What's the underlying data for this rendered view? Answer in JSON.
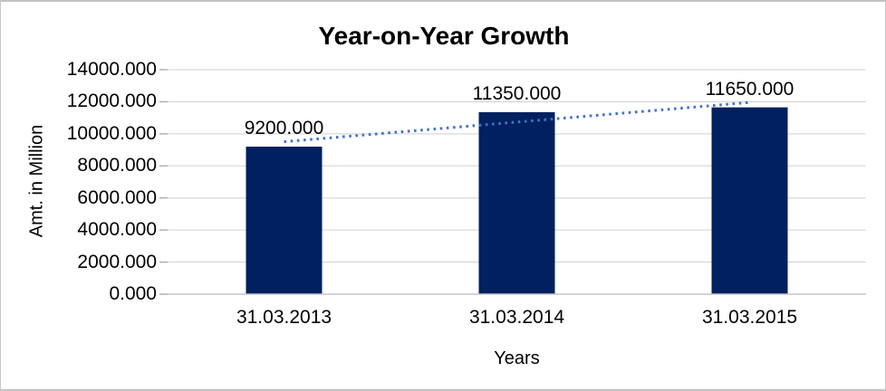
{
  "window": {
    "background": "#ffffff",
    "border_color": "#c9c9c9"
  },
  "chart_data": {
    "type": "bar",
    "title": "Year-on-Year Growth",
    "xlabel": "Years",
    "ylabel": "Amt. in Million",
    "categories": [
      "31.03.2013",
      "31.03.2014",
      "31.03.2015"
    ],
    "values": [
      9200,
      11350,
      11650
    ],
    "data_labels": [
      "9200.000",
      "11350.000",
      "11650.000"
    ],
    "y_ticks": [
      "0.000",
      "2000.000",
      "4000.000",
      "6000.000",
      "8000.000",
      "10000.000",
      "12000.000",
      "14000.000"
    ],
    "ylim": [
      0,
      14000
    ],
    "y_step": 2000,
    "grid": true,
    "legend": "none",
    "trendline": {
      "type": "linear",
      "style": "dotted",
      "color": "#4472c4",
      "fitted_values": [
        9508.33,
        10733.33,
        11958.33
      ]
    },
    "colors": {
      "bar": "#002060",
      "gridline": "#d9d9d9",
      "axis_line": "#c6c6c6",
      "tick_mark": "#a6a6a6",
      "text": "#000000"
    }
  }
}
